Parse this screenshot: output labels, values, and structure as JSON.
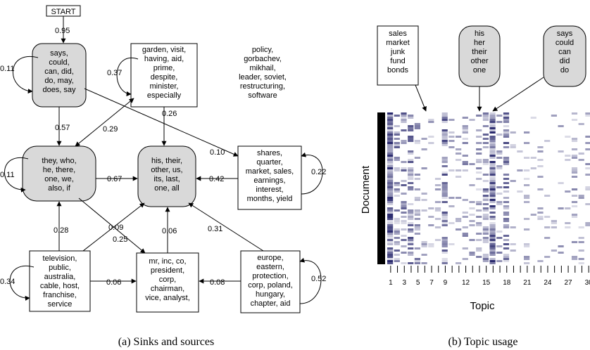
{
  "panel_a": {
    "caption": "(a)  Sinks and sources",
    "start_label": "START",
    "nodes": [
      {
        "id": "says",
        "shape": "round",
        "lines": [
          "says,",
          "could,",
          "can, did,",
          "do, may,",
          "does, say"
        ]
      },
      {
        "id": "garden",
        "shape": "rect",
        "lines": [
          "garden, visit,",
          "having, aid,",
          "prime,",
          "despite,",
          "minister,",
          "especially"
        ]
      },
      {
        "id": "policy",
        "shape": "plain",
        "lines": [
          "policy,",
          "gorbachev,",
          "mikhail,",
          "leader, soviet,",
          "restructuring,",
          "software"
        ]
      },
      {
        "id": "they",
        "shape": "round",
        "lines": [
          "they, who,",
          "he, there,",
          "one, we,",
          "also, if"
        ]
      },
      {
        "id": "his",
        "shape": "round",
        "lines": [
          "his, their,",
          "other, us,",
          "its, last,",
          "one, all"
        ]
      },
      {
        "id": "shares",
        "shape": "rect",
        "lines": [
          "shares,",
          "quarter,",
          "market, sales,",
          "earnings,",
          "interest,",
          "months, yield"
        ]
      },
      {
        "id": "television",
        "shape": "rect",
        "lines": [
          "television,",
          "public,",
          "australia,",
          "cable, host,",
          "franchise,",
          "service"
        ]
      },
      {
        "id": "mr",
        "shape": "rect",
        "lines": [
          "mr, inc, co,",
          "president,",
          "corp,",
          "chairman,",
          "vice, analyst,"
        ]
      },
      {
        "id": "europe",
        "shape": "rect",
        "lines": [
          "europe,",
          "eastern,",
          "protection,",
          "corp, poland,",
          "hungary,",
          "chapter, aid"
        ]
      }
    ],
    "edge_labels": {
      "start_says": "0.95",
      "self_says": "0.11",
      "self_garden": "0.37",
      "garden_his": "0.26",
      "says_they": "0.57",
      "garden_they": "0.29",
      "says_shares": "0.10",
      "self_they": "0.11",
      "they_his": "0.67",
      "shares_his": "0.42",
      "self_shares": "0.22",
      "television_they": "0.28",
      "television_his": "0.09",
      "they_mr": "0.25",
      "mr_his": "0.06",
      "europe_his": "0.31",
      "self_television": "0.34",
      "television_mr": "0.06",
      "europe_mr": "0.08",
      "self_europe": "0.52"
    }
  },
  "panel_b": {
    "caption": "(b)  Topic usage",
    "xlabel": "Topic",
    "ylabel": "Document",
    "topic_boxes": [
      {
        "shape": "rect",
        "lines": [
          "sales",
          "market",
          "junk",
          "fund",
          "bonds"
        ],
        "points_to_topic": 4
      },
      {
        "shape": "round",
        "lines": [
          "his",
          "her",
          "their",
          "other",
          "one"
        ],
        "points_to_topic": 15
      },
      {
        "shape": "round",
        "lines": [
          "says",
          "could",
          "can",
          "did",
          "do"
        ],
        "points_to_topic": 17
      }
    ],
    "tick_labels": [
      "1",
      "3",
      "5",
      "7",
      "9",
      "12",
      "15",
      "18",
      "21",
      "24",
      "27",
      "30"
    ]
  },
  "chart_data": {
    "type": "heatmap",
    "xlabel": "Topic",
    "ylabel": "Document",
    "x_ticks": [
      1,
      3,
      5,
      7,
      9,
      12,
      15,
      18,
      21,
      24,
      27,
      30
    ],
    "topics": 32,
    "relative_usage": [
      0.95,
      0.5,
      0.55,
      0.6,
      0.35,
      0.15,
      0.1,
      0.1,
      0.65,
      0.1,
      0.15,
      0.3,
      0.2,
      0.3,
      0.5,
      0.9,
      0.35,
      0.6,
      0.1,
      0.05,
      0.15,
      0.05,
      0.15,
      0.05,
      0.15,
      0.15,
      0.1,
      0.25,
      0.15,
      0.2,
      0.1,
      0.1
    ],
    "colors": {
      "low": "#ffffff",
      "high": "#2a2a6e",
      "marker": "#000000"
    }
  }
}
